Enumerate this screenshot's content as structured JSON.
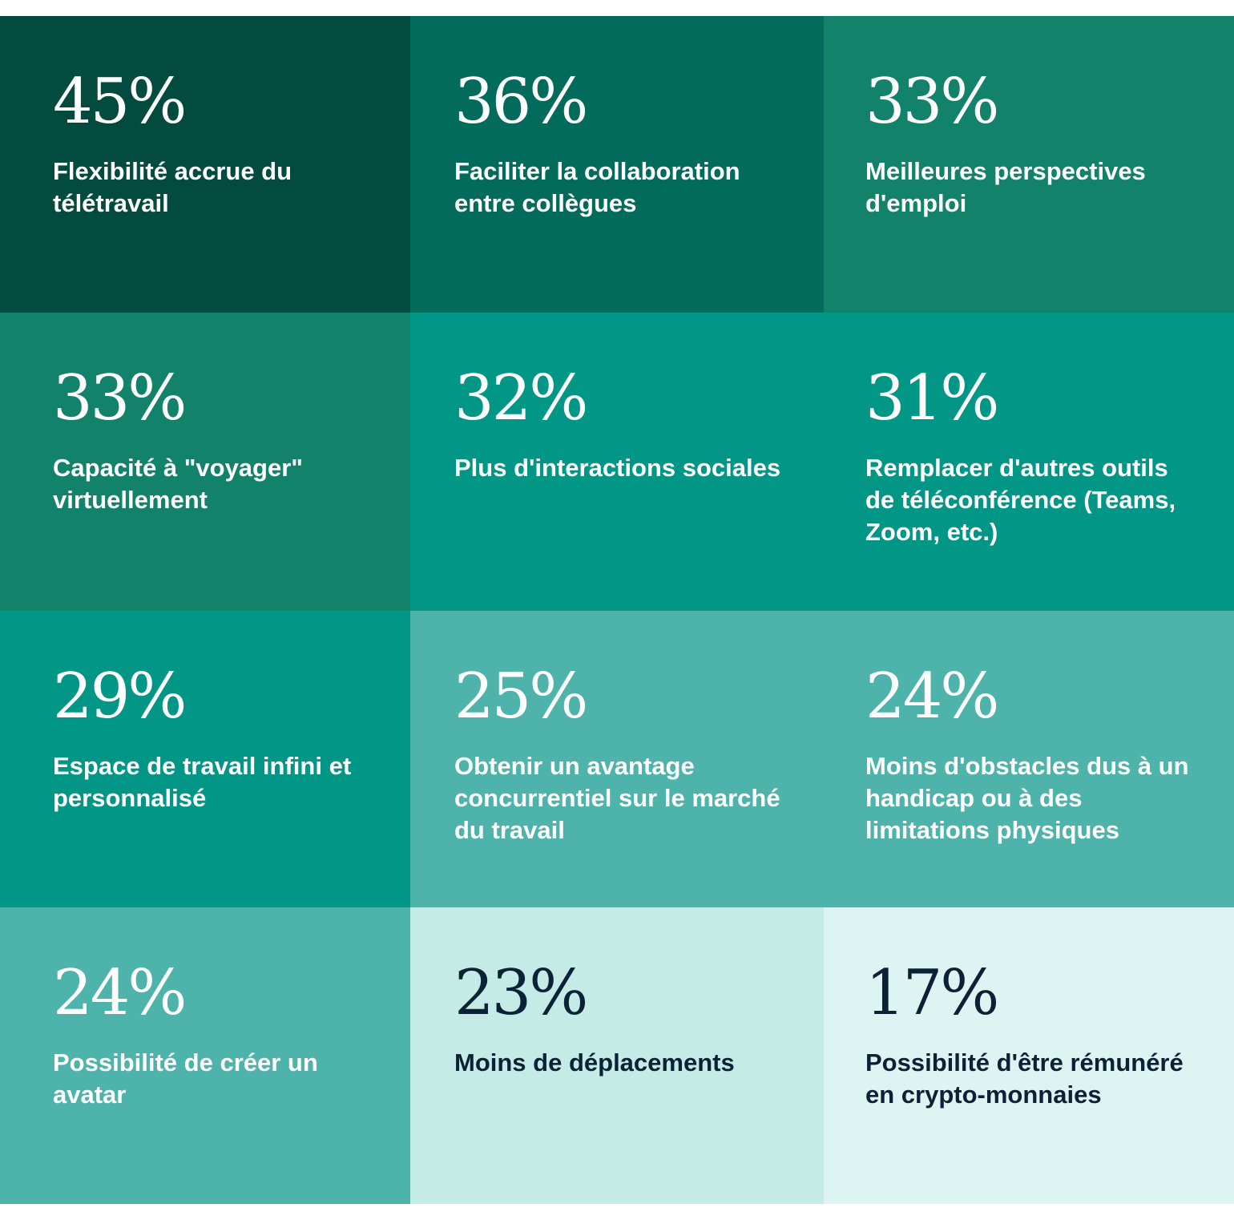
{
  "chart_data": {
    "type": "table",
    "unit": "%",
    "tiles": [
      {
        "value": "45%",
        "number": 45,
        "label": "Flexibilité accrue du télétravail",
        "bg": "#024b3e",
        "fg": "#ffffff"
      },
      {
        "value": "36%",
        "number": 36,
        "label": "Faciliter la collaboration entre collègues",
        "bg": "#026b5b",
        "fg": "#ffffff"
      },
      {
        "value": "33%",
        "number": 33,
        "label": "Meilleures perspectives d'emploi",
        "bg": "#12836a",
        "fg": "#ffffff"
      },
      {
        "value": "33%",
        "number": 33,
        "label": "Capacité à \"voyager\" virtuellement",
        "bg": "#12836a",
        "fg": "#ffffff"
      },
      {
        "value": "32%",
        "number": 32,
        "label": "Plus d'interactions sociales",
        "bg": "#029686",
        "fg": "#ffffff"
      },
      {
        "value": "31%",
        "number": 31,
        "label": "Remplacer d'autres outils de téléconférence (Teams, Zoom, etc.)",
        "bg": "#029686",
        "fg": "#ffffff"
      },
      {
        "value": "29%",
        "number": 29,
        "label": "Espace de travail infini et personnalisé",
        "bg": "#029686",
        "fg": "#ffffff"
      },
      {
        "value": "25%",
        "number": 25,
        "label": "Obtenir un avantage concurrentiel sur le marché du travail",
        "bg": "#4db3ab",
        "fg": "#ffffff"
      },
      {
        "value": "24%",
        "number": 24,
        "label": "Moins d'obstacles dus à un handicap ou à des limitations physiques",
        "bg": "#4db3ab",
        "fg": "#ffffff"
      },
      {
        "value": "24%",
        "number": 24,
        "label": "Possibilité de créer un avatar",
        "bg": "#4db3ab",
        "fg": "#ffffff"
      },
      {
        "value": "23%",
        "number": 23,
        "label": "Moins de déplacements",
        "bg": "#c4ebe6",
        "fg": "#0b2236"
      },
      {
        "value": "17%",
        "number": 17,
        "label": "Possibilité d'être rémunéré en crypto-monnaies",
        "bg": "#dcf5f3",
        "fg": "#0b2236"
      }
    ]
  }
}
